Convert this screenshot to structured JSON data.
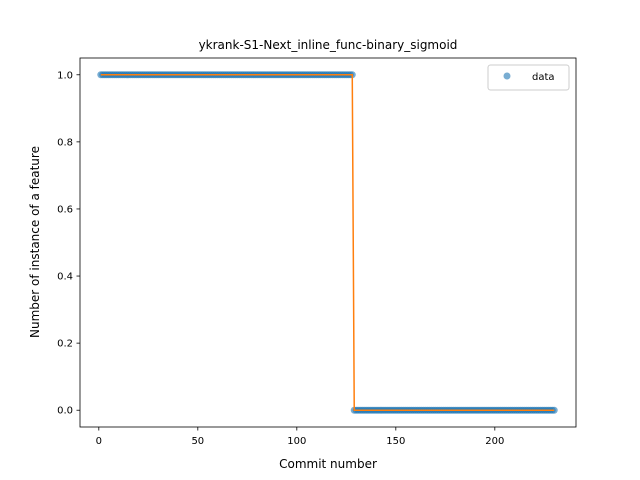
{
  "chart_data": {
    "type": "scatter",
    "title": "ykrank-S1-Next_inline_func-binary_sigmoid",
    "xlabel": "Commit number",
    "ylabel": "Number of instance of a feature",
    "xlim": [
      -9.5,
      241
    ],
    "ylim": [
      -0.05,
      1.05
    ],
    "xticks": [
      0,
      50,
      100,
      150,
      200
    ],
    "yticks": [
      0.0,
      0.2,
      0.4,
      0.6,
      0.8,
      1.0
    ],
    "xtick_labels": [
      "0",
      "50",
      "100",
      "150",
      "200"
    ],
    "ytick_labels": [
      "0.0",
      "0.2",
      "0.4",
      "0.6",
      "0.8",
      "1.0"
    ],
    "series": [
      {
        "name": "data",
        "kind": "points",
        "color": "#1f77b4",
        "segments": [
          {
            "x_start": 1,
            "x_end": 128,
            "y": 1
          },
          {
            "x_start": 129,
            "x_end": 230,
            "y": 0
          }
        ]
      },
      {
        "kind": "line",
        "color": "#ff7f0e",
        "x": [
          1,
          128,
          129,
          230
        ],
        "y": [
          1,
          1,
          0,
          0
        ]
      }
    ],
    "legend": {
      "position": "upper-right",
      "entries": [
        "data"
      ]
    },
    "grid": false
  }
}
